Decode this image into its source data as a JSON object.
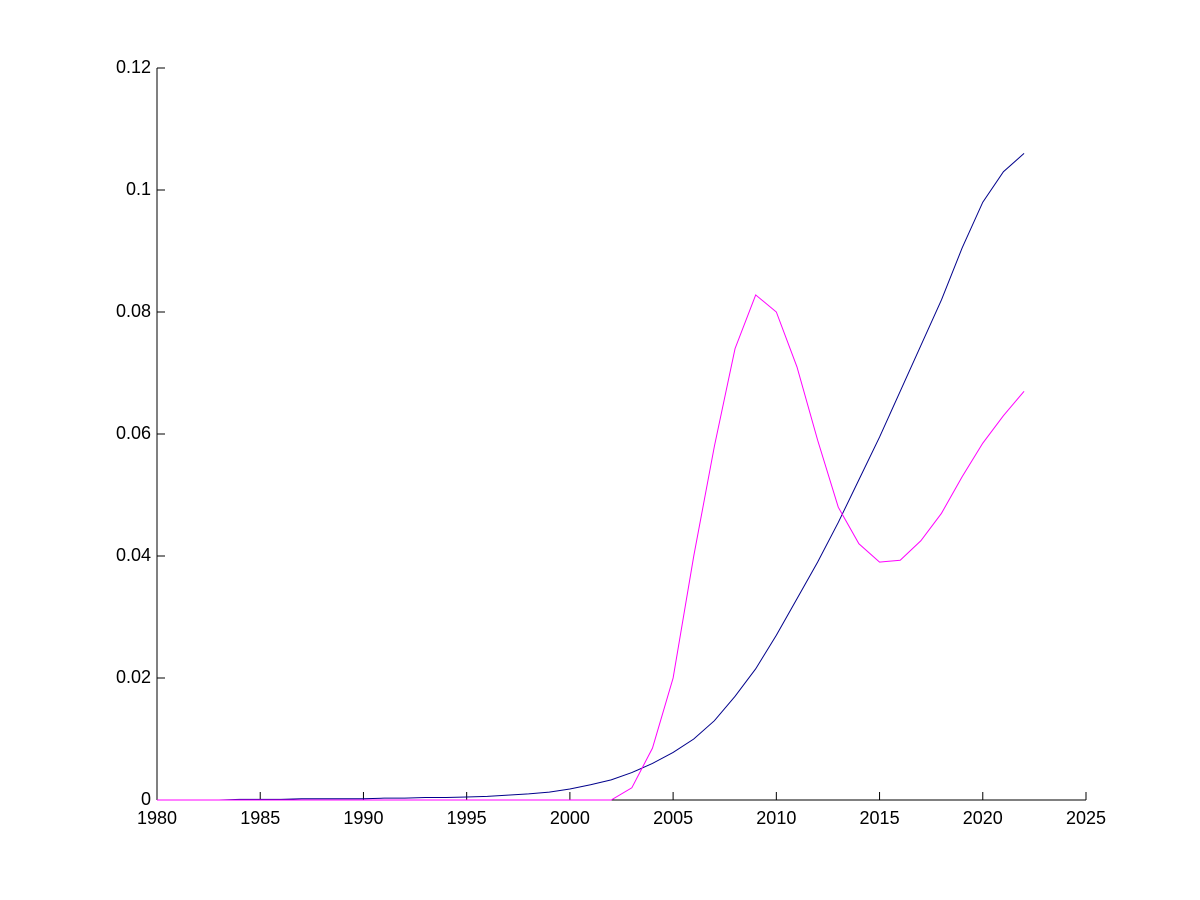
{
  "chart_data": {
    "type": "line",
    "x": [
      1980,
      1981,
      1982,
      1983,
      1984,
      1985,
      1986,
      1987,
      1988,
      1989,
      1990,
      1991,
      1992,
      1993,
      1994,
      1995,
      1996,
      1997,
      1998,
      1999,
      2000,
      2001,
      2002,
      2003,
      2004,
      2005,
      2006,
      2007,
      2008,
      2009,
      2010,
      2011,
      2012,
      2013,
      2014,
      2015,
      2016,
      2017,
      2018,
      2019,
      2020,
      2021,
      2022
    ],
    "series": [
      {
        "color": "#00008b",
        "values": [
          0,
          0,
          0,
          0,
          0.0001,
          0.0001,
          0.0001,
          0.0002,
          0.0002,
          0.0002,
          0.0002,
          0.0003,
          0.0003,
          0.0004,
          0.0004,
          0.0005,
          0.0006,
          0.0008,
          0.001,
          0.0013,
          0.0018,
          0.0025,
          0.0033,
          0.0045,
          0.006,
          0.0078,
          0.01,
          0.013,
          0.017,
          0.0215,
          0.027,
          0.033,
          0.039,
          0.0455,
          0.0525,
          0.0595,
          0.067,
          0.0745,
          0.082,
          0.0905,
          0.098,
          0.103,
          0.106
        ]
      },
      {
        "color": "#ff00ff",
        "values": [
          0,
          0,
          0,
          0,
          0,
          0,
          0,
          0,
          0,
          0,
          0,
          0,
          0,
          0,
          0,
          0,
          0,
          0,
          0,
          0,
          0,
          0,
          0,
          0.002,
          0.0085,
          0.02,
          0.04,
          0.058,
          0.074,
          0.0828,
          0.08,
          0.071,
          0.059,
          0.048,
          0.042,
          0.039,
          0.0393,
          0.0425,
          0.047,
          0.053,
          0.0585,
          0.063,
          0.067
        ]
      }
    ],
    "xlim": [
      1980,
      2025
    ],
    "xticks": [
      1980,
      1985,
      1990,
      1995,
      2000,
      2005,
      2010,
      2015,
      2020,
      2025
    ],
    "ylim": [
      0,
      0.12
    ],
    "yticks": [
      0,
      0.02,
      0.04,
      0.06,
      0.08,
      0.1,
      0.12
    ]
  }
}
